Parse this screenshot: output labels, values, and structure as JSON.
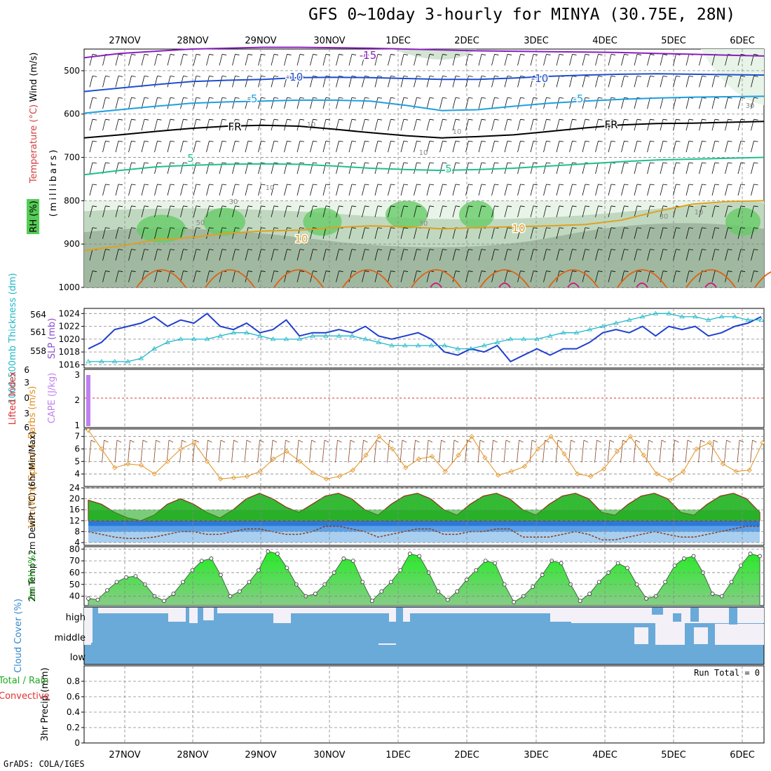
{
  "title": "GFS 0~10day 3-hourly for MINYA (30.75E, 28N)",
  "credit": "GrADS: COLA/IGES",
  "date_labels": [
    "27NOV",
    "28NOV",
    "29NOV",
    "30NOV",
    "1DEC",
    "2DEC",
    "3DEC",
    "4DEC",
    "5DEC",
    "6DEC"
  ],
  "colors": {
    "rh_light": "#e8f4e8",
    "rh_mid": "#c0d8c0",
    "rh_dark": "#a0b8a0",
    "rh_green": "#66cc66",
    "t_minus15": "#8a1fbf",
    "t_minus10": "#1f4fcf",
    "t_minus5": "#1f9fdf",
    "t_fr": "#000000",
    "t_5": "#1fbf8f",
    "t_10": "#e0a020",
    "t_15": "#e06010",
    "t_20": "#d01080",
    "slp": "#1f3fcf",
    "thickness": "#20b8c8",
    "cape": "#c080f0",
    "wind10": "#e09020",
    "temp_fill": "#33bb33",
    "dew_fill": "#3388dd",
    "rh2m": "#33cc33",
    "cloud": "#6aaad8"
  },
  "chart_data": [
    {
      "type": "heatmap",
      "panel": "upper-air",
      "ylabel": "(millibars)",
      "legend_labels": [
        "Wind (m/s)",
        "Temperature (°C)",
        "RH (%)"
      ],
      "y_ticks": [
        500,
        600,
        700,
        800,
        900,
        1000
      ],
      "ylim": [
        1000,
        450
      ],
      "isotherm_labels": [
        "-15",
        "-10",
        "-10",
        "-5",
        "-5",
        "FR",
        "FR",
        "5",
        "5",
        "10",
        "10"
      ],
      "rh_labels": [
        "30",
        "10",
        "10",
        "10",
        "10",
        "30",
        "50",
        "30",
        "30",
        "10"
      ],
      "isotherms": [
        {
          "label": "-15",
          "color": "t_minus15",
          "p": [
            470,
            460,
            455,
            450,
            448,
            446,
            446,
            447,
            448,
            450,
            452,
            454,
            455,
            456,
            457,
            458,
            460,
            462,
            464,
            466
          ]
        },
        {
          "label": "-10",
          "color": "t_minus10",
          "p": [
            548,
            540,
            532,
            525,
            522,
            520,
            516,
            515,
            516,
            518,
            520,
            520,
            517,
            513,
            510,
            508,
            507,
            508,
            509,
            510
          ]
        },
        {
          "label": "-5",
          "color": "t_minus5",
          "p": [
            598,
            590,
            582,
            575,
            572,
            570,
            568,
            568,
            570,
            580,
            592,
            590,
            582,
            575,
            570,
            566,
            563,
            561,
            560,
            559
          ]
        },
        {
          "label": "FR",
          "color": "t_fr",
          "p": [
            655,
            648,
            640,
            633,
            628,
            626,
            628,
            635,
            643,
            650,
            655,
            652,
            648,
            640,
            632,
            625,
            622,
            621,
            619,
            617
          ]
        },
        {
          "label": "5",
          "color": "t_5",
          "p": [
            740,
            730,
            722,
            718,
            716,
            715,
            716,
            720,
            725,
            728,
            730,
            728,
            725,
            720,
            715,
            710,
            706,
            704,
            702,
            700
          ]
        },
        {
          "label": "10",
          "color": "t_10",
          "p": [
            915,
            905,
            890,
            885,
            875,
            870,
            868,
            862,
            858,
            860,
            865,
            862,
            860,
            858,
            855,
            845,
            825,
            808,
            802,
            800
          ]
        }
      ],
      "rh_shading": {
        "levels": [
          10,
          30,
          50,
          70,
          90
        ],
        "low_level_top_hpa": 800
      }
    },
    {
      "type": "line",
      "panel": "slp-thickness",
      "ylabel": "SLP (mb)",
      "ylabel2": "1000-500mb Thickness (dm)",
      "y_ticks": [
        1016,
        1018,
        1020,
        1022,
        1024
      ],
      "y2_ticks": [
        558,
        561,
        564
      ],
      "ylim": [
        1015.5,
        1024.8
      ],
      "series": [
        {
          "name": "SLP (mb)",
          "values": [
            1018.5,
            1019.5,
            1021.5,
            1022.0,
            1022.5,
            1023.5,
            1022.0,
            1023.0,
            1022.5,
            1024.0,
            1022.0,
            1021.5,
            1022.5,
            1021.0,
            1021.5,
            1023.0,
            1020.5,
            1021.0,
            1021.0,
            1021.5,
            1021.0,
            1022.0,
            1020.5,
            1020.0,
            1020.5,
            1021.0,
            1020.0,
            1018.0,
            1017.5,
            1018.5,
            1018.0,
            1019.0,
            1016.5,
            1017.5,
            1018.5,
            1017.5,
            1018.5,
            1018.5,
            1019.5,
            1021.0,
            1021.5,
            1021.0,
            1022.0,
            1020.5,
            1022.0,
            1021.5,
            1022.0,
            1020.5,
            1021.0,
            1022.0,
            1022.5,
            1023.5
          ]
        },
        {
          "name": "1000-500mb Thickness (dm)",
          "values": [
            1016.5,
            1016.5,
            1016.5,
            1016.5,
            1017.0,
            1018.5,
            1019.5,
            1020.0,
            1020.0,
            1020.0,
            1020.5,
            1021.0,
            1021.0,
            1020.5,
            1020.0,
            1020.0,
            1020.0,
            1020.5,
            1020.5,
            1020.5,
            1020.5,
            1020.0,
            1019.5,
            1019.0,
            1019.0,
            1019.0,
            1019.0,
            1019.0,
            1018.5,
            1018.5,
            1019.0,
            1019.5,
            1020.0,
            1020.0,
            1020.0,
            1020.5,
            1021.0,
            1021.0,
            1021.5,
            1022.0,
            1022.5,
            1023.0,
            1023.5,
            1024.0,
            1024.0,
            1023.5,
            1023.5,
            1023.0,
            1023.5,
            1023.5,
            1023.0,
            1023.0
          ]
        }
      ]
    },
    {
      "type": "bar",
      "panel": "cape-li",
      "ylabel": "CAPE (J/kg)",
      "ylabel2": "Lifted Index",
      "y_ticks": [
        "3",
        "2",
        "1"
      ],
      "y2_ticks": [
        "6",
        "3",
        "0",
        "3",
        "6"
      ],
      "cape_bar_time_index": 0,
      "cape_value": 3.0
    },
    {
      "type": "line",
      "panel": "wind10m",
      "ylabel": "10m Wind Speed & Barbs (m/s)",
      "y_ticks": [
        4,
        5,
        6,
        7
      ],
      "ylim": [
        3,
        7.6
      ],
      "series": [
        {
          "name": "10m Wind Speed",
          "values": [
            7.5,
            6.0,
            4.5,
            4.8,
            4.7,
            4.0,
            5.0,
            6.0,
            6.5,
            5.0,
            3.6,
            3.7,
            3.8,
            4.2,
            5.2,
            5.8,
            5.0,
            4.1,
            3.6,
            3.8,
            4.3,
            5.5,
            7.0,
            6.0,
            4.5,
            5.2,
            5.4,
            4.2,
            5.5,
            7.0,
            5.3,
            3.9,
            4.2,
            4.6,
            6.0,
            7.0,
            5.6,
            4.0,
            3.8,
            4.4,
            5.8,
            7.0,
            5.5,
            4.0,
            3.5,
            4.2,
            6.0,
            6.5,
            4.8,
            4.2,
            4.3,
            6.5
          ]
        }
      ]
    },
    {
      "type": "area",
      "panel": "temp-dewpt",
      "ylabel": "2m Temp / 2m DewPt (°C) (6hr Min/Max)",
      "y_ticks": [
        4,
        8,
        12,
        16,
        20,
        24
      ],
      "ylim": [
        3,
        24
      ],
      "series": [
        {
          "name": "2m Temp",
          "values": [
            19.5,
            18.0,
            15.0,
            13.0,
            12.0,
            14.0,
            18.0,
            20.0,
            18.0,
            15.0,
            13.0,
            16.0,
            20.0,
            22.0,
            20.0,
            17.0,
            15.0,
            18.0,
            21.0,
            22.0,
            20.0,
            16.0,
            14.0,
            18.0,
            21.0,
            22.0,
            20.0,
            16.0,
            14.0,
            18.0,
            21.0,
            22.0,
            20.0,
            16.0,
            14.0,
            18.0,
            21.0,
            22.0,
            20.0,
            15.0,
            14.0,
            18.0,
            21.0,
            22.0,
            20.0,
            15.0,
            14.0,
            18.0,
            21.0,
            22.0,
            20.0,
            15.0
          ]
        },
        {
          "name": "2m DewPt",
          "values": [
            8.0,
            7.0,
            6.0,
            5.5,
            5.5,
            6.0,
            7.0,
            8.0,
            8.0,
            7.0,
            7.0,
            8.0,
            9.0,
            9.0,
            8.0,
            7.0,
            7.0,
            8.0,
            10.0,
            10.0,
            9.0,
            8.0,
            6.0,
            7.0,
            8.0,
            9.0,
            9.0,
            7.0,
            7.0,
            8.0,
            8.0,
            9.0,
            9.0,
            6.0,
            6.0,
            6.0,
            7.0,
            8.0,
            7.0,
            5.0,
            5.0,
            6.0,
            7.0,
            8.0,
            7.0,
            6.0,
            6.0,
            7.0,
            8.0,
            9.0,
            10.0,
            10.0
          ]
        }
      ]
    },
    {
      "type": "area",
      "panel": "rh2m",
      "ylabel": "2m RH (%)",
      "y_ticks": [
        40,
        50,
        60,
        70,
        80
      ],
      "ylim": [
        32,
        82
      ],
      "series": [
        {
          "name": "2m RH",
          "values": [
            38,
            37,
            45,
            52,
            56,
            57,
            50,
            40,
            36,
            42,
            52,
            62,
            70,
            72,
            58,
            40,
            44,
            52,
            62,
            78,
            76,
            64,
            50,
            40,
            42,
            50,
            60,
            72,
            70,
            52,
            36,
            44,
            52,
            62,
            76,
            74,
            60,
            44,
            37,
            44,
            54,
            62,
            70,
            68,
            50,
            35,
            40,
            48,
            58,
            70,
            68,
            50,
            36,
            42,
            52,
            60,
            68,
            64,
            50,
            38,
            40,
            52,
            66,
            72,
            74,
            60,
            42,
            40,
            52,
            66,
            76,
            74
          ]
        }
      ]
    },
    {
      "type": "heatmap",
      "panel": "cloud-cover",
      "ylabel": "Cloud Cover (%)",
      "y_ticks": [
        "high",
        "middle",
        "low"
      ]
    },
    {
      "type": "bar",
      "panel": "precip",
      "ylabel": "3hr Precip (mm)",
      "legend_labels": [
        "Total / Rain",
        "Convective"
      ],
      "y_ticks": [
        0,
        0.2,
        0.4,
        0.6,
        0.8
      ],
      "ylim": [
        0,
        1
      ],
      "run_total_label": "Run Total = 0"
    }
  ]
}
